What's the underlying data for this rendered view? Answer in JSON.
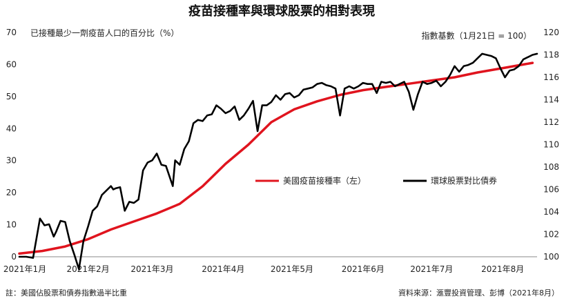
{
  "chart_data": {
    "title": "疫苗接種率與環球股票的相對表現",
    "left_axis_label": "已接種最少一劑疫苗人口的百分比（%）",
    "right_axis_label": "指數基數（1月21日 = 100）",
    "note": "註：美國佔股票和債券指數過半比重",
    "source": "資料來源：滙豐投資管理、彭博（2021年8月）",
    "x_ticks": [
      "2021年1月",
      "2021年2月",
      "2021年3月",
      "2021年4月",
      "2021年5月",
      "2021年6月",
      "2021年7月",
      "2021年8月"
    ],
    "left_ticks": [
      0,
      10,
      20,
      30,
      40,
      50,
      60,
      70
    ],
    "right_ticks": [
      100,
      102,
      104,
      106,
      108,
      110,
      112,
      114,
      116,
      118,
      120
    ],
    "ylim_left": [
      0,
      70
    ],
    "ylim_right": [
      100,
      120
    ],
    "series": [
      {
        "name": "美國疫苗接種率（左）",
        "axis": "left",
        "color": "#e0141e",
        "x": [
          0,
          10,
          20,
          30,
          40,
          50,
          60,
          70,
          80,
          90,
          100,
          110,
          120,
          130,
          140,
          150,
          160,
          170,
          180,
          190,
          200,
          212,
          224
        ],
        "y": [
          1,
          1.8,
          3.2,
          5.5,
          8.5,
          11,
          13.5,
          16.5,
          22,
          29,
          35,
          42,
          46,
          48.5,
          50.5,
          52,
          53,
          54,
          55,
          56,
          57.5,
          59,
          60.5
        ]
      },
      {
        "name": "環球股票對比債券",
        "axis": "right",
        "color": "#000000",
        "x": [
          0,
          3,
          6,
          9,
          11,
          13,
          15,
          16,
          18,
          20,
          22,
          24,
          26,
          28,
          30,
          32,
          34,
          36,
          38,
          40,
          41,
          42,
          44,
          46,
          48,
          50,
          52,
          54,
          56,
          58,
          60,
          62,
          64,
          66,
          67,
          68,
          70,
          72,
          74,
          76,
          78,
          80,
          82,
          84,
          86,
          88,
          90,
          92,
          94,
          96,
          98,
          100,
          102,
          104,
          106,
          108,
          110,
          112,
          114,
          116,
          118,
          120,
          122,
          124,
          126,
          128,
          130,
          132,
          134,
          136,
          138,
          140,
          142,
          144,
          146,
          148,
          150,
          152,
          154,
          156,
          158,
          160,
          162,
          164,
          166,
          168,
          170,
          172,
          174,
          176,
          178,
          180,
          182,
          184,
          186,
          188,
          190,
          192,
          194,
          196,
          198,
          200,
          202,
          204,
          206,
          208,
          210,
          212,
          214,
          216,
          218,
          220,
          222,
          224,
          226
        ],
        "y": [
          100,
          100,
          99.9,
          103.4,
          102.8,
          102.9,
          101.8,
          102.2,
          103.2,
          103.1,
          101.4,
          100.2,
          98.9,
          101.4,
          102.7,
          104.1,
          104.5,
          105.5,
          105.9,
          106.3,
          106.0,
          106.1,
          106.2,
          104.1,
          104.9,
          104.8,
          105.1,
          107.7,
          108.4,
          108.6,
          109.2,
          108.2,
          108.1,
          106.9,
          106.3,
          108.6,
          108.2,
          109.6,
          110.3,
          111.9,
          112.2,
          112.1,
          112.6,
          112.7,
          113.5,
          113.2,
          112.8,
          113.0,
          113.4,
          112.2,
          112.6,
          113.2,
          113.9,
          111.2,
          113.5,
          113.5,
          113.8,
          114.4,
          114.0,
          114.5,
          114.6,
          114.2,
          114.4,
          114.9,
          115.0,
          115.1,
          115.4,
          115.5,
          115.3,
          115.2,
          115.0,
          112.6,
          115.0,
          115.2,
          115.0,
          115.2,
          115.5,
          115.4,
          115.4,
          114.6,
          115.6,
          115.5,
          115.6,
          115.2,
          115.4,
          115.6,
          114.7,
          113.1,
          114.5,
          115.6,
          115.4,
          115.5,
          115.7,
          115.2,
          115.6,
          116.2,
          117.0,
          116.5,
          117.0,
          117.1,
          117.3,
          117.7,
          118.1,
          118.0,
          117.9,
          117.7,
          116.8,
          116.0,
          116.6,
          116.7,
          117.0,
          117.6,
          117.8,
          118.0,
          118.1
        ]
      }
    ],
    "legend_position": "center-right"
  }
}
